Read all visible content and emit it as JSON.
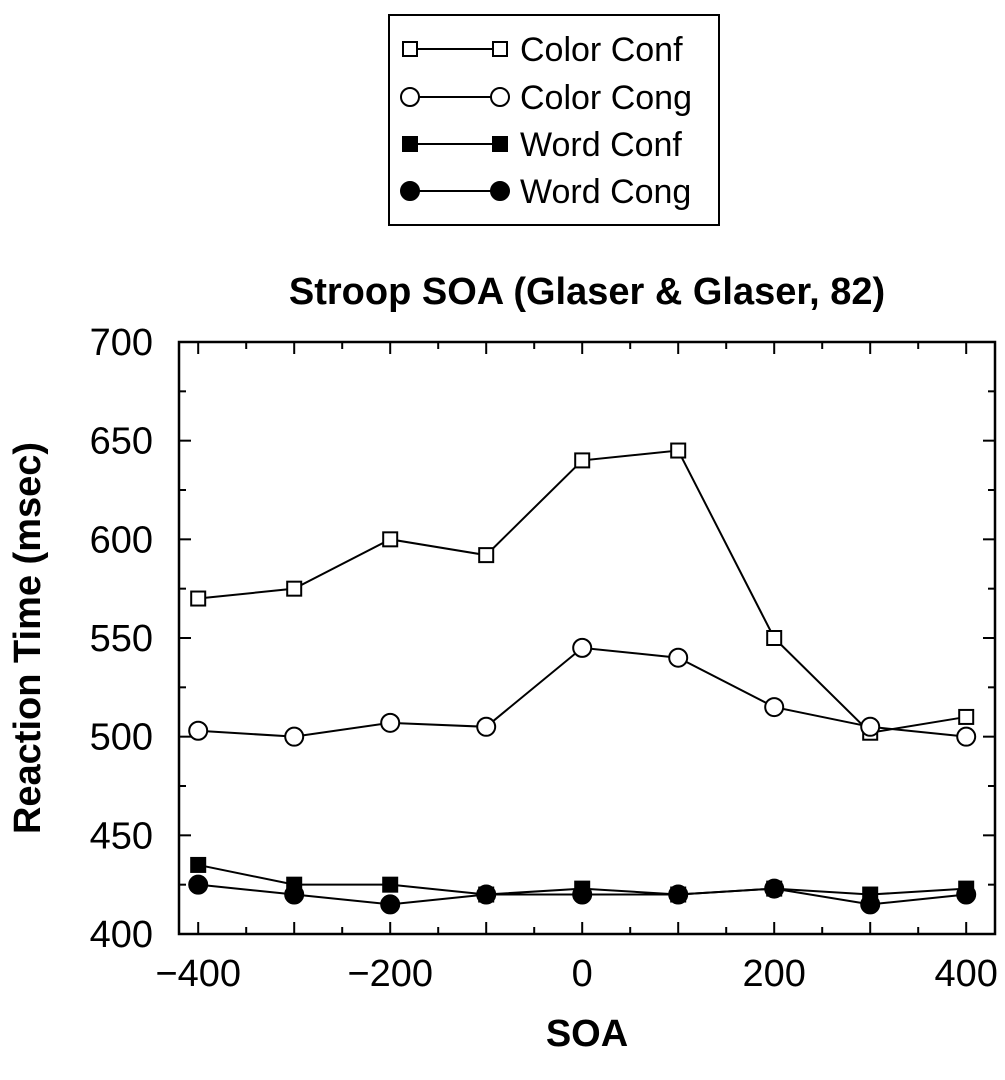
{
  "chart_data": {
    "type": "line",
    "title": "Stroop SOA (Glaser & Glaser, 82)",
    "xlabel": "SOA",
    "ylabel": "Reaction Time (msec)",
    "x": [
      -400,
      -300,
      -200,
      -100,
      0,
      100,
      200,
      300,
      400
    ],
    "xlim": [
      -420,
      430
    ],
    "ylim": [
      400,
      700
    ],
    "xticks": [
      -400,
      -200,
      0,
      200,
      400
    ],
    "xtick_labels": [
      "−400",
      "−200",
      "0",
      "200",
      "400"
    ],
    "yticks": [
      400,
      450,
      500,
      550,
      600,
      650,
      700
    ],
    "ytick_labels": [
      "400",
      "450",
      "500",
      "550",
      "600",
      "650",
      "700"
    ],
    "grid": false,
    "legend_position": "top-center, above plot",
    "series": [
      {
        "name": "Color Conf",
        "marker": "square-open",
        "values": [
          570,
          575,
          600,
          592,
          640,
          645,
          550,
          502,
          510
        ]
      },
      {
        "name": "Color Cong",
        "marker": "circle-open",
        "values": [
          503,
          500,
          507,
          505,
          545,
          540,
          515,
          505,
          500
        ]
      },
      {
        "name": "Word Conf",
        "marker": "square-filled",
        "values": [
          435,
          425,
          425,
          420,
          423,
          420,
          423,
          420,
          423
        ]
      },
      {
        "name": "Word Cong",
        "marker": "circle-filled",
        "values": [
          425,
          420,
          415,
          420,
          420,
          420,
          423,
          415,
          420
        ]
      }
    ],
    "colors": {
      "line": "#000000",
      "marker_fill_open": "#ffffff",
      "marker_fill_filled": "#000000"
    }
  }
}
